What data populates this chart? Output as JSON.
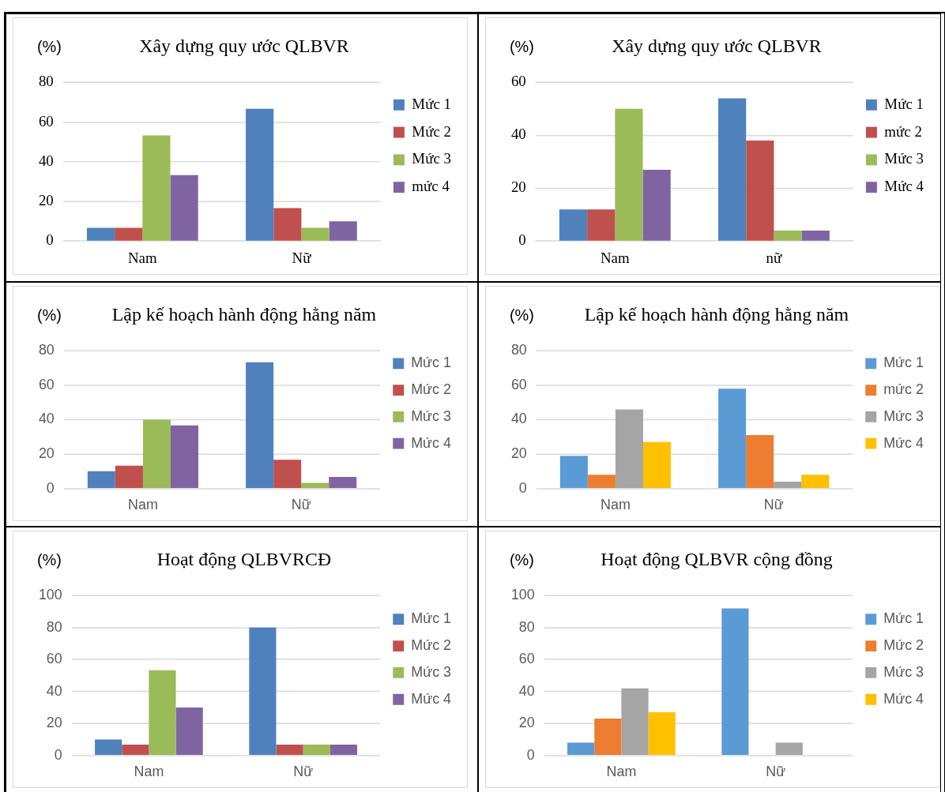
{
  "chart_data": [
    {
      "type": "bar",
      "title": "Xây dựng quy ước QLBVR",
      "ylabel": "(%)",
      "categories": [
        "Nam",
        "Nữ"
      ],
      "ylim": [
        0,
        80
      ],
      "yticks": [
        0,
        20,
        40,
        60,
        80
      ],
      "grid": "y",
      "legend": "right",
      "series": [
        {
          "name": "Mức 1",
          "color": "#4f81bd",
          "values": [
            6.7,
            66.7
          ]
        },
        {
          "name": "Mức 2",
          "color": "#c0504d",
          "values": [
            6.7,
            16.7
          ]
        },
        {
          "name": "Mức 3",
          "color": "#9bbb59",
          "values": [
            53.3,
            6.7
          ]
        },
        {
          "name": "mức 4",
          "color": "#8064a2",
          "values": [
            33.3,
            10
          ]
        }
      ]
    },
    {
      "type": "bar",
      "title": "Xây dựng quy ước QLBVR",
      "ylabel": "(%)",
      "categories": [
        "Nam",
        "nữ"
      ],
      "ylim": [
        0,
        60
      ],
      "yticks": [
        0,
        20,
        40,
        60
      ],
      "grid": "y",
      "legend": "right",
      "series": [
        {
          "name": "Mức 1",
          "color": "#4f81bd",
          "values": [
            12,
            54
          ]
        },
        {
          "name": "mức 2",
          "color": "#c0504d",
          "values": [
            12,
            38
          ]
        },
        {
          "name": "Mức 3",
          "color": "#9bbb59",
          "values": [
            50,
            4
          ]
        },
        {
          "name": "Mức 4",
          "color": "#8064a2",
          "values": [
            27,
            4
          ]
        }
      ]
    },
    {
      "type": "bar",
      "title": "Lập kế hoạch hành động hằng năm",
      "ylabel": "(%)",
      "categories": [
        "Nam",
        "Nữ"
      ],
      "ylim": [
        0,
        80
      ],
      "yticks": [
        0,
        20,
        40,
        60,
        80
      ],
      "grid": "y",
      "legend": "right",
      "series": [
        {
          "name": "Mức 1",
          "color": "#4f81bd",
          "values": [
            10,
            73.3
          ]
        },
        {
          "name": "Mức 2",
          "color": "#c0504d",
          "values": [
            13.3,
            16.7
          ]
        },
        {
          "name": "Mức 3",
          "color": "#9bbb59",
          "values": [
            40,
            3.3
          ]
        },
        {
          "name": "Mức 4",
          "color": "#8064a2",
          "values": [
            36.7,
            6.7
          ]
        }
      ]
    },
    {
      "type": "bar",
      "title": "Lập kế hoạch hành động hằng năm",
      "ylabel": "(%)",
      "categories": [
        "Nam",
        "Nữ"
      ],
      "ylim": [
        0,
        80
      ],
      "yticks": [
        0,
        20,
        40,
        60,
        80
      ],
      "grid": "y",
      "legend": "right",
      "series": [
        {
          "name": "Mức 1",
          "color": "#5b9bd5",
          "values": [
            19,
            58
          ]
        },
        {
          "name": "mức 2",
          "color": "#ed7d31",
          "values": [
            8,
            31
          ]
        },
        {
          "name": "Mức 3",
          "color": "#a5a5a5",
          "values": [
            46,
            4
          ]
        },
        {
          "name": "Mức 4",
          "color": "#ffc000",
          "values": [
            27,
            8
          ]
        }
      ]
    },
    {
      "type": "bar",
      "title": "Hoạt động QLBVRCĐ",
      "ylabel": "(%)",
      "categories": [
        "Nam",
        "Nữ"
      ],
      "ylim": [
        0,
        100
      ],
      "yticks": [
        0,
        20,
        40,
        60,
        80,
        100
      ],
      "grid": "y",
      "legend": "right",
      "series": [
        {
          "name": "Mức 1",
          "color": "#4f81bd",
          "values": [
            10,
            80
          ]
        },
        {
          "name": "Mức 2",
          "color": "#c0504d",
          "values": [
            6.7,
            6.7
          ]
        },
        {
          "name": "Mức 3",
          "color": "#9bbb59",
          "values": [
            53.3,
            6.7
          ]
        },
        {
          "name": "Mức 4",
          "color": "#8064a2",
          "values": [
            30,
            6.7
          ]
        }
      ]
    },
    {
      "type": "bar",
      "title": "Hoạt động QLBVR cộng đồng",
      "ylabel": "(%)",
      "categories": [
        "Nam",
        "Nữ"
      ],
      "ylim": [
        0,
        100
      ],
      "yticks": [
        0,
        20,
        40,
        60,
        80,
        100
      ],
      "grid": "y",
      "legend": "right",
      "series": [
        {
          "name": "Mức 1",
          "color": "#5b9bd5",
          "values": [
            8,
            92
          ]
        },
        {
          "name": "Mức 2",
          "color": "#ed7d31",
          "values": [
            23,
            0
          ]
        },
        {
          "name": "Mức 3",
          "color": "#a5a5a5",
          "values": [
            42,
            8
          ]
        },
        {
          "name": "Mức 4",
          "color": "#ffc000",
          "values": [
            27,
            0
          ]
        }
      ]
    }
  ]
}
